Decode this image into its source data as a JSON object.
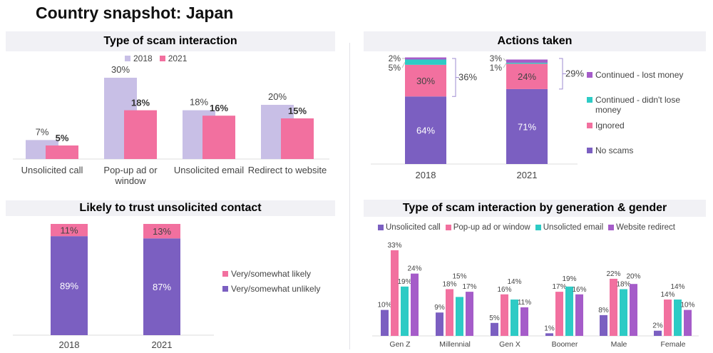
{
  "page_title": "Country snapshot: Japan",
  "colors": {
    "y2018": "#c8bfe6",
    "y2021": "#f2709f",
    "no_scams": "#7b5fc1",
    "ignored": "#f2709f",
    "continued_no_loss": "#2dcbc5",
    "continued_lost": "#a55cc9",
    "likely": "#f2709f",
    "unlikely": "#7b5fc1",
    "call": "#7b5fc1",
    "popup": "#f2709f",
    "email": "#2dcbc5",
    "redirect": "#a55cc9"
  },
  "chart_data": [
    {
      "type": "bar",
      "title": "Type of scam interaction",
      "legend": "top",
      "categories": [
        "Unsolicited call",
        "Pop-up ad or window",
        "Unsolicited email",
        "Redirect to website"
      ],
      "series": [
        {
          "name": "2018",
          "values": [
            7,
            30,
            18,
            20
          ]
        },
        {
          "name": "2021",
          "values": [
            5,
            18,
            16,
            15
          ]
        }
      ],
      "data_labels": {
        "2018": [
          "7%",
          "30%",
          "18%",
          "20%"
        ],
        "2021": [
          "5%",
          "18%",
          "16%",
          "15%"
        ]
      }
    },
    {
      "type": "bar",
      "stacked": true,
      "title": "Actions taken",
      "legend": "right",
      "categories": [
        "2018",
        "2021"
      ],
      "series": [
        {
          "name": "No scams",
          "values": [
            64,
            71
          ]
        },
        {
          "name": "Ignored",
          "values": [
            30,
            24
          ]
        },
        {
          "name": "Continued - didn't lose money",
          "values": [
            5,
            1
          ]
        },
        {
          "name": "Continued - lost money",
          "values": [
            2,
            3
          ]
        }
      ],
      "data_labels": {
        "No scams": [
          "64%",
          "71%"
        ],
        "Ignored": [
          "30%",
          "24%"
        ],
        "Continued - didn't lose money": [
          "5%",
          "1%"
        ],
        "Continued - lost money": [
          "2%",
          "3%"
        ]
      },
      "bracket_totals": [
        "36%",
        "29%"
      ]
    },
    {
      "type": "bar",
      "stacked": true,
      "title": "Likely to trust unsolicited contact",
      "legend": "right",
      "categories": [
        "2018",
        "2021"
      ],
      "series": [
        {
          "name": "Very/somewhat unlikely",
          "values": [
            89,
            87
          ]
        },
        {
          "name": "Very/somewhat likely",
          "values": [
            11,
            13
          ]
        }
      ],
      "data_labels": {
        "Very/somewhat unlikely": [
          "89%",
          "87%"
        ],
        "Very/somewhat likely": [
          "11%",
          "13%"
        ]
      }
    },
    {
      "type": "bar",
      "title": "Type of scam interaction by generation & gender",
      "legend": "top",
      "categories": [
        "Gen Z",
        "Millennial",
        "Gen X",
        "Boomer",
        "Male",
        "Female"
      ],
      "series": [
        {
          "name": "Unsolicited call",
          "values": [
            10,
            9,
            5,
            1,
            8,
            2
          ]
        },
        {
          "name": "Pop-up ad or window",
          "values": [
            33,
            18,
            16,
            17,
            22,
            14
          ]
        },
        {
          "name": "Unsolicted email",
          "values": [
            19,
            15,
            14,
            19,
            18,
            14
          ]
        },
        {
          "name": "Website redirect",
          "values": [
            24,
            17,
            11,
            16,
            20,
            10
          ]
        }
      ]
    }
  ]
}
